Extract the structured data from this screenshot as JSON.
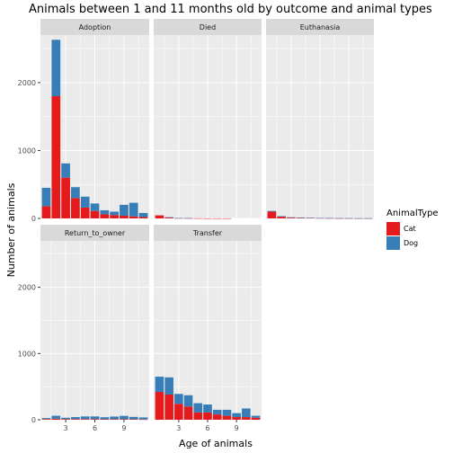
{
  "chart_data": {
    "type": "bar",
    "title": "Animals between 1 and 11 months old by outcome and animal types",
    "xlabel": "Age of animals",
    "ylabel": "Number of animals",
    "x_ticks": [
      3,
      6,
      9
    ],
    "y_ticks": [
      0,
      1000,
      2000
    ],
    "ylim": [
      0,
      2700
    ],
    "xlim": [
      0.4,
      11.6
    ],
    "stacked": true,
    "grid": true,
    "legend": {
      "title": "AnimalType",
      "position": "right",
      "entries": [
        "Cat",
        "Dog"
      ]
    },
    "colors": {
      "Cat": "#E41A1C",
      "Dog": "#377EB8",
      "panel_bg": "#EBEBEB",
      "strip_bg": "#D9D9D9",
      "grid": "#ffffff"
    },
    "x": [
      1,
      2,
      3,
      4,
      5,
      6,
      7,
      8,
      9,
      10,
      11
    ],
    "panels": [
      {
        "label": "Adoption",
        "series": [
          {
            "name": "Cat",
            "values": [
              180,
              1800,
              600,
              300,
              160,
              110,
              60,
              50,
              40,
              30,
              20
            ]
          },
          {
            "name": "Dog",
            "values": [
              270,
              830,
              210,
              160,
              160,
              110,
              60,
              50,
              160,
              200,
              60
            ]
          }
        ]
      },
      {
        "label": "Died",
        "series": [
          {
            "name": "Cat",
            "values": [
              45,
              15,
              4,
              3,
              2,
              1,
              1,
              1,
              0,
              0,
              0
            ]
          },
          {
            "name": "Dog",
            "values": [
              0,
              2,
              1,
              1,
              0,
              0,
              0,
              0,
              0,
              0,
              0
            ]
          }
        ]
      },
      {
        "label": "Euthanasia",
        "series": [
          {
            "name": "Cat",
            "values": [
              100,
              25,
              12,
              8,
              6,
              4,
              3,
              2,
              2,
              1,
              1
            ]
          },
          {
            "name": "Dog",
            "values": [
              10,
              8,
              5,
              4,
              4,
              3,
              3,
              2,
              2,
              2,
              2
            ]
          }
        ]
      },
      {
        "label": "Return_to_owner",
        "series": [
          {
            "name": "Cat",
            "values": [
              10,
              15,
              10,
              10,
              10,
              10,
              8,
              8,
              8,
              8,
              5
            ]
          },
          {
            "name": "Dog",
            "values": [
              15,
              45,
              20,
              30,
              40,
              40,
              30,
              40,
              50,
              35,
              30
            ]
          }
        ]
      },
      {
        "label": "Transfer",
        "series": [
          {
            "name": "Cat",
            "values": [
              420,
              380,
              240,
              200,
              110,
              110,
              80,
              60,
              40,
              40,
              30
            ]
          },
          {
            "name": "Dog",
            "values": [
              230,
              260,
              150,
              170,
              140,
              120,
              70,
              90,
              60,
              130,
              30
            ]
          }
        ]
      }
    ]
  }
}
